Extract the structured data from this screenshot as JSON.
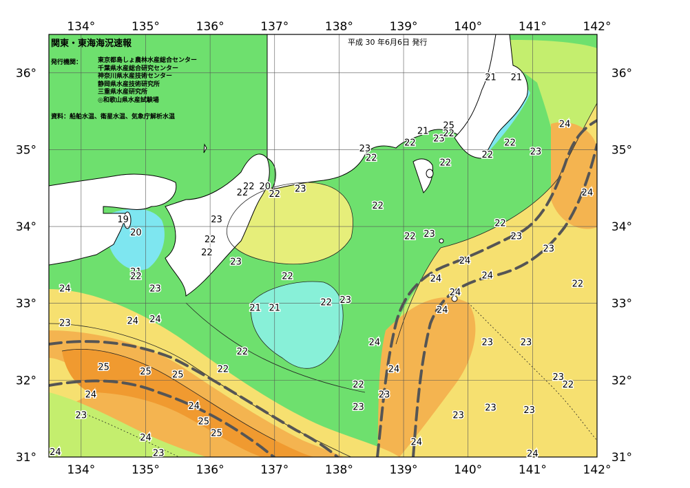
{
  "header": {
    "title": "関東・東海海況速報",
    "date": "平成 30 年6月6日 発行",
    "issuer_label": "発行機関：",
    "issuers": [
      "東京都島しょ農林水産総合センター",
      "千葉県水産総合研究センター",
      "神奈川県水産技術センター",
      "静岡県水産技術研究所",
      "三重県水産研究所",
      "◎和歌山県水産試験場"
    ],
    "source": "資料：船舶水温、衛星水温、気象庁解析水温"
  },
  "axes": {
    "lon_ticks": [
      "134°",
      "135°",
      "136°",
      "137°",
      "138°",
      "139°",
      "140°",
      "141°",
      "142°"
    ],
    "lat_ticks": [
      "31°",
      "32°",
      "33°",
      "34°",
      "35°",
      "36°"
    ],
    "lon_range": [
      133.5,
      142.0
    ],
    "lat_range": [
      31.0,
      36.5
    ]
  },
  "colors": {
    "t20": "#7ee6f0",
    "t21": "#88f0d8",
    "t22": "#6ee06e",
    "t23": "#c4ee6e",
    "t24": "#f6e070",
    "t25": "#f4b450",
    "t26": "#f09a30",
    "land": "#ffffff",
    "kuroshio_axis": "#555555"
  },
  "contour_labels": [
    {
      "text": "23",
      "lon": 139.55,
      "lat": 35.15
    },
    {
      "text": "21",
      "lon": 140.35,
      "lat": 35.95
    },
    {
      "text": "21",
      "lon": 140.75,
      "lat": 35.95
    },
    {
      "text": "21",
      "lon": 139.3,
      "lat": 35.25
    },
    {
      "text": "25",
      "lon": 139.7,
      "lat": 35.32
    },
    {
      "text": "22",
      "lon": 139.1,
      "lat": 35.1
    },
    {
      "text": "22",
      "lon": 139.7,
      "lat": 35.22
    },
    {
      "text": "23",
      "lon": 138.4,
      "lat": 35.02
    },
    {
      "text": "22",
      "lon": 138.5,
      "lat": 34.9
    },
    {
      "text": "22",
      "lon": 140.3,
      "lat": 34.94
    },
    {
      "text": "22",
      "lon": 140.65,
      "lat": 35.1
    },
    {
      "text": "22",
      "lon": 139.65,
      "lat": 34.84
    },
    {
      "text": "23",
      "lon": 141.05,
      "lat": 34.98
    },
    {
      "text": "24",
      "lon": 141.5,
      "lat": 35.34
    },
    {
      "text": "24",
      "lon": 141.85,
      "lat": 34.45
    },
    {
      "text": "22",
      "lon": 138.6,
      "lat": 34.28
    },
    {
      "text": "22",
      "lon": 140.5,
      "lat": 34.05
    },
    {
      "text": "23",
      "lon": 140.75,
      "lat": 33.88
    },
    {
      "text": "23",
      "lon": 141.25,
      "lat": 33.72
    },
    {
      "text": "23",
      "lon": 139.4,
      "lat": 33.91
    },
    {
      "text": "22",
      "lon": 139.1,
      "lat": 33.88
    },
    {
      "text": "24",
      "lon": 139.95,
      "lat": 33.56
    },
    {
      "text": "24",
      "lon": 139.5,
      "lat": 33.33
    },
    {
      "text": "24",
      "lon": 140.3,
      "lat": 33.37
    },
    {
      "text": "24",
      "lon": 139.8,
      "lat": 33.15
    },
    {
      "text": "24",
      "lon": 139.6,
      "lat": 32.92
    },
    {
      "text": "22",
      "lon": 141.7,
      "lat": 33.26
    },
    {
      "text": "22",
      "lon": 137.2,
      "lat": 33.36
    },
    {
      "text": "22",
      "lon": 137.8,
      "lat": 33.02
    },
    {
      "text": "23",
      "lon": 138.1,
      "lat": 33.05
    },
    {
      "text": "21",
      "lon": 136.7,
      "lat": 32.95
    },
    {
      "text": "21",
      "lon": 137.0,
      "lat": 32.95
    },
    {
      "text": "23",
      "lon": 136.4,
      "lat": 33.55
    },
    {
      "text": "22",
      "lon": 136.0,
      "lat": 33.84
    },
    {
      "text": "22",
      "lon": 135.95,
      "lat": 33.67
    },
    {
      "text": "23",
      "lon": 136.1,
      "lat": 34.1
    },
    {
      "text": "23",
      "lon": 137.4,
      "lat": 34.5
    },
    {
      "text": "22",
      "lon": 136.5,
      "lat": 34.45
    },
    {
      "text": "22",
      "lon": 136.6,
      "lat": 34.53
    },
    {
      "text": "20",
      "lon": 136.85,
      "lat": 34.53
    },
    {
      "text": "22",
      "lon": 137.0,
      "lat": 34.43
    },
    {
      "text": "19",
      "lon": 134.65,
      "lat": 34.1
    },
    {
      "text": "20",
      "lon": 134.85,
      "lat": 33.93
    },
    {
      "text": "21",
      "lon": 134.85,
      "lat": 33.42
    },
    {
      "text": "22",
      "lon": 134.85,
      "lat": 33.36
    },
    {
      "text": "23",
      "lon": 135.15,
      "lat": 33.2
    },
    {
      "text": "24",
      "lon": 133.75,
      "lat": 33.2
    },
    {
      "text": "23",
      "lon": 133.75,
      "lat": 32.75
    },
    {
      "text": "24",
      "lon": 134.8,
      "lat": 32.78
    },
    {
      "text": "24",
      "lon": 135.15,
      "lat": 32.8
    },
    {
      "text": "25",
      "lon": 134.35,
      "lat": 32.18
    },
    {
      "text": "25",
      "lon": 135.0,
      "lat": 32.12
    },
    {
      "text": "25",
      "lon": 135.5,
      "lat": 32.08
    },
    {
      "text": "22",
      "lon": 136.2,
      "lat": 32.15
    },
    {
      "text": "22",
      "lon": 136.5,
      "lat": 32.38
    },
    {
      "text": "24",
      "lon": 138.55,
      "lat": 32.5
    },
    {
      "text": "24",
      "lon": 138.85,
      "lat": 32.15
    },
    {
      "text": "23",
      "lon": 140.3,
      "lat": 32.5
    },
    {
      "text": "23",
      "lon": 140.9,
      "lat": 32.5
    },
    {
      "text": "23",
      "lon": 141.4,
      "lat": 32.05
    },
    {
      "text": "22",
      "lon": 141.55,
      "lat": 31.95
    },
    {
      "text": "22",
      "lon": 138.3,
      "lat": 31.95
    },
    {
      "text": "23",
      "lon": 138.7,
      "lat": 31.82
    },
    {
      "text": "23",
      "lon": 138.3,
      "lat": 31.66
    },
    {
      "text": "24",
      "lon": 134.15,
      "lat": 31.82
    },
    {
      "text": "24",
      "lon": 135.75,
      "lat": 31.67
    },
    {
      "text": "25",
      "lon": 135.9,
      "lat": 31.47
    },
    {
      "text": "25",
      "lon": 136.1,
      "lat": 31.32
    },
    {
      "text": "23",
      "lon": 134.0,
      "lat": 31.55
    },
    {
      "text": "24",
      "lon": 135.0,
      "lat": 31.26
    },
    {
      "text": "23",
      "lon": 135.2,
      "lat": 31.06
    },
    {
      "text": "24",
      "lon": 133.6,
      "lat": 31.07
    },
    {
      "text": "23",
      "lon": 139.85,
      "lat": 31.55
    },
    {
      "text": "23",
      "lon": 140.35,
      "lat": 31.65
    },
    {
      "text": "23",
      "lon": 140.95,
      "lat": 31.62
    },
    {
      "text": "24",
      "lon": 139.2,
      "lat": 31.2
    },
    {
      "text": "24",
      "lon": 141.0,
      "lat": 31.05
    }
  ]
}
